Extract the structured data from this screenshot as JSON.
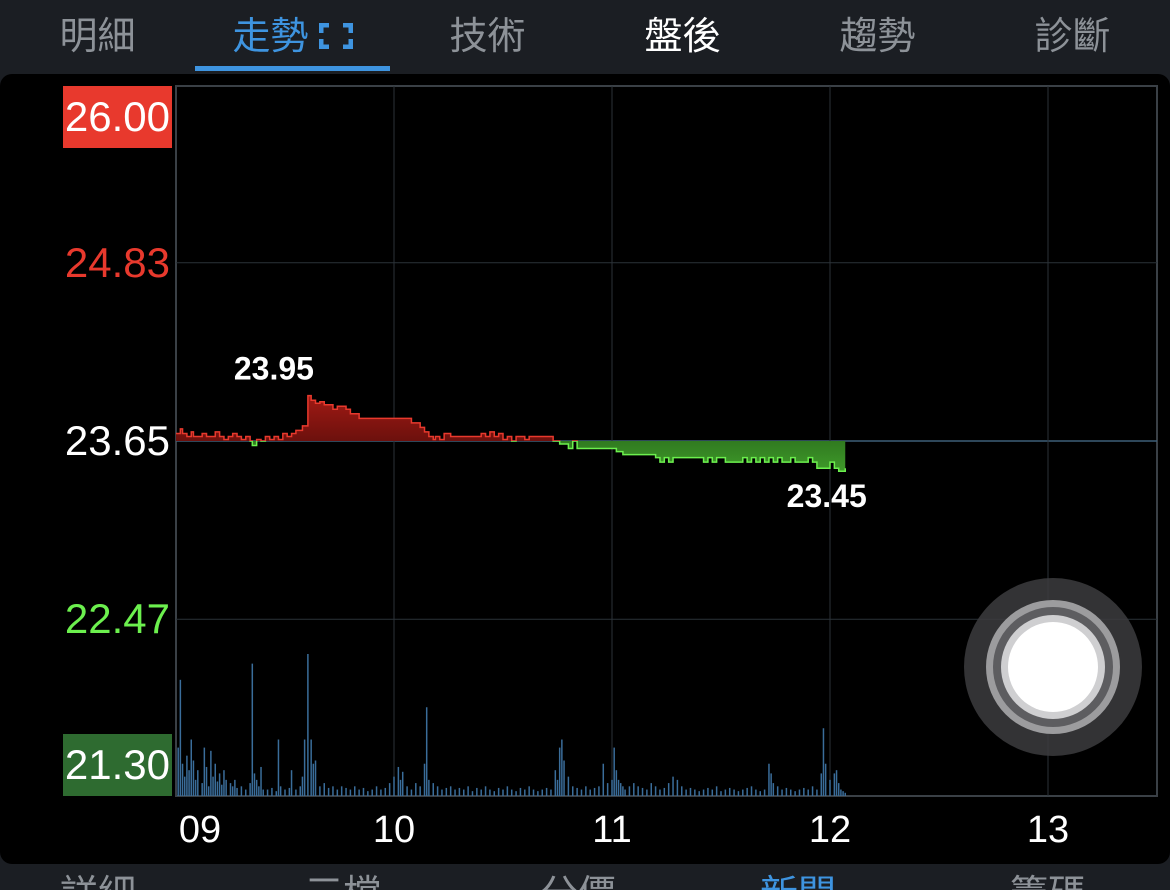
{
  "tabs": [
    {
      "label": "明細",
      "state": "normal"
    },
    {
      "label": "走勢",
      "state": "active"
    },
    {
      "label": "技術",
      "state": "normal"
    },
    {
      "label": "盤後",
      "state": "bright"
    },
    {
      "label": "趨勢",
      "state": "normal"
    },
    {
      "label": "診斷",
      "state": "normal"
    }
  ],
  "bottom_tabs": [
    {
      "label": "詳細",
      "state": "normal"
    },
    {
      "label": "三檔",
      "state": "normal"
    },
    {
      "label": "分價",
      "state": "normal"
    },
    {
      "label": "新聞",
      "state": "active"
    },
    {
      "label": "籌碼",
      "state": "normal"
    }
  ],
  "colors": {
    "up": "#e8392d",
    "down": "#6cf04e",
    "neutral": "#ffffff",
    "accent": "#3e94e0",
    "grid": "#2b3238",
    "volume": "#3a6d9a"
  },
  "chart_data": {
    "type": "line",
    "y_axis_labels": [
      {
        "text": "26.00",
        "value": 26.0,
        "color": "#ffffff",
        "bg": "#e8392d"
      },
      {
        "text": "24.83",
        "value": 24.83,
        "color": "#e8392d",
        "bg": ""
      },
      {
        "text": "23.65",
        "value": 23.65,
        "color": "#ffffff",
        "bg": ""
      },
      {
        "text": "22.47",
        "value": 22.47,
        "color": "#6cf04e",
        "bg": ""
      },
      {
        "text": "21.30",
        "value": 21.3,
        "color": "#ffffff",
        "bg": "#2e6b30"
      }
    ],
    "ylim": [
      21.3,
      26.0
    ],
    "reference_price": 23.65,
    "x_ticks": [
      "09",
      "10",
      "11",
      "12",
      "13"
    ],
    "xlim_hours": [
      9,
      13.5
    ],
    "high": {
      "label": "23.95",
      "value": 23.95,
      "time": 9.605
    },
    "low": {
      "label": "23.45",
      "value": 23.45,
      "time": 12.04
    },
    "price_series": [
      [
        9.0,
        23.7
      ],
      [
        9.02,
        23.73
      ],
      [
        9.03,
        23.7
      ],
      [
        9.05,
        23.68
      ],
      [
        9.07,
        23.71
      ],
      [
        9.08,
        23.68
      ],
      [
        9.1,
        23.68
      ],
      [
        9.12,
        23.7
      ],
      [
        9.14,
        23.68
      ],
      [
        9.16,
        23.68
      ],
      [
        9.18,
        23.71
      ],
      [
        9.2,
        23.68
      ],
      [
        9.22,
        23.66
      ],
      [
        9.24,
        23.68
      ],
      [
        9.26,
        23.7
      ],
      [
        9.28,
        23.68
      ],
      [
        9.3,
        23.66
      ],
      [
        9.32,
        23.68
      ],
      [
        9.34,
        23.65
      ],
      [
        9.35,
        23.62
      ],
      [
        9.37,
        23.66
      ],
      [
        9.39,
        23.65
      ],
      [
        9.41,
        23.68
      ],
      [
        9.43,
        23.66
      ],
      [
        9.45,
        23.68
      ],
      [
        9.47,
        23.66
      ],
      [
        9.49,
        23.7
      ],
      [
        9.51,
        23.68
      ],
      [
        9.53,
        23.7
      ],
      [
        9.55,
        23.72
      ],
      [
        9.58,
        23.75
      ],
      [
        9.605,
        23.95
      ],
      [
        9.62,
        23.92
      ],
      [
        9.64,
        23.9
      ],
      [
        9.66,
        23.91
      ],
      [
        9.68,
        23.89
      ],
      [
        9.7,
        23.89
      ],
      [
        9.72,
        23.86
      ],
      [
        9.74,
        23.88
      ],
      [
        9.76,
        23.88
      ],
      [
        9.78,
        23.86
      ],
      [
        9.8,
        23.83
      ],
      [
        9.82,
        23.83
      ],
      [
        9.84,
        23.8
      ],
      [
        9.86,
        23.8
      ],
      [
        9.88,
        23.8
      ],
      [
        9.9,
        23.8
      ],
      [
        9.92,
        23.8
      ],
      [
        9.94,
        23.8
      ],
      [
        9.96,
        23.8
      ],
      [
        9.98,
        23.8
      ],
      [
        10.02,
        23.8
      ],
      [
        10.06,
        23.8
      ],
      [
        10.08,
        23.77
      ],
      [
        10.1,
        23.77
      ],
      [
        10.12,
        23.74
      ],
      [
        10.14,
        23.71
      ],
      [
        10.16,
        23.68
      ],
      [
        10.18,
        23.66
      ],
      [
        10.19,
        23.68
      ],
      [
        10.21,
        23.66
      ],
      [
        10.23,
        23.7
      ],
      [
        10.26,
        23.68
      ],
      [
        10.3,
        23.68
      ],
      [
        10.34,
        23.68
      ],
      [
        10.38,
        23.68
      ],
      [
        10.4,
        23.7
      ],
      [
        10.42,
        23.68
      ],
      [
        10.44,
        23.71
      ],
      [
        10.46,
        23.68
      ],
      [
        10.48,
        23.7
      ],
      [
        10.5,
        23.66
      ],
      [
        10.52,
        23.68
      ],
      [
        10.54,
        23.65
      ],
      [
        10.56,
        23.68
      ],
      [
        10.6,
        23.66
      ],
      [
        10.62,
        23.68
      ],
      [
        10.64,
        23.68
      ],
      [
        10.66,
        23.68
      ],
      [
        10.68,
        23.68
      ],
      [
        10.7,
        23.68
      ],
      [
        10.73,
        23.65
      ],
      [
        10.76,
        23.63
      ],
      [
        10.78,
        23.63
      ],
      [
        10.8,
        23.6
      ],
      [
        10.82,
        23.65
      ],
      [
        10.84,
        23.6
      ],
      [
        10.9,
        23.6
      ],
      [
        10.96,
        23.6
      ],
      [
        11.0,
        23.6
      ],
      [
        11.02,
        23.58
      ],
      [
        11.05,
        23.56
      ],
      [
        11.1,
        23.56
      ],
      [
        11.15,
        23.56
      ],
      [
        11.18,
        23.56
      ],
      [
        11.2,
        23.54
      ],
      [
        11.22,
        23.51
      ],
      [
        11.24,
        23.54
      ],
      [
        11.26,
        23.51
      ],
      [
        11.28,
        23.54
      ],
      [
        11.3,
        23.54
      ],
      [
        11.35,
        23.54
      ],
      [
        11.4,
        23.54
      ],
      [
        11.42,
        23.51
      ],
      [
        11.44,
        23.54
      ],
      [
        11.46,
        23.51
      ],
      [
        11.48,
        23.54
      ],
      [
        11.52,
        23.51
      ],
      [
        11.55,
        23.51
      ],
      [
        11.58,
        23.51
      ],
      [
        11.6,
        23.54
      ],
      [
        11.62,
        23.51
      ],
      [
        11.64,
        23.54
      ],
      [
        11.66,
        23.51
      ],
      [
        11.68,
        23.54
      ],
      [
        11.7,
        23.51
      ],
      [
        11.72,
        23.54
      ],
      [
        11.74,
        23.51
      ],
      [
        11.76,
        23.54
      ],
      [
        11.78,
        23.51
      ],
      [
        11.8,
        23.51
      ],
      [
        11.82,
        23.54
      ],
      [
        11.84,
        23.51
      ],
      [
        11.86,
        23.51
      ],
      [
        11.88,
        23.51
      ],
      [
        11.9,
        23.54
      ],
      [
        11.92,
        23.51
      ],
      [
        11.94,
        23.47
      ],
      [
        11.96,
        23.47
      ],
      [
        11.98,
        23.47
      ],
      [
        12.0,
        23.51
      ],
      [
        12.02,
        23.47
      ],
      [
        12.04,
        23.45
      ],
      [
        12.07,
        23.47
      ]
    ],
    "volume_series": [
      [
        9.01,
        30
      ],
      [
        9.02,
        72
      ],
      [
        9.03,
        20
      ],
      [
        9.04,
        12
      ],
      [
        9.05,
        25
      ],
      [
        9.06,
        16
      ],
      [
        9.07,
        35
      ],
      [
        9.08,
        22
      ],
      [
        9.09,
        10
      ],
      [
        9.1,
        16
      ],
      [
        9.12,
        8
      ],
      [
        9.13,
        30
      ],
      [
        9.14,
        18
      ],
      [
        9.15,
        6
      ],
      [
        9.16,
        28
      ],
      [
        9.17,
        12
      ],
      [
        9.18,
        20
      ],
      [
        9.19,
        9
      ],
      [
        9.2,
        14
      ],
      [
        9.21,
        7
      ],
      [
        9.22,
        16
      ],
      [
        9.23,
        10
      ],
      [
        9.25,
        8
      ],
      [
        9.26,
        6
      ],
      [
        9.27,
        10
      ],
      [
        9.28,
        5
      ],
      [
        9.3,
        6
      ],
      [
        9.32,
        4
      ],
      [
        9.34,
        8
      ],
      [
        9.35,
        82
      ],
      [
        9.36,
        14
      ],
      [
        9.37,
        10
      ],
      [
        9.38,
        6
      ],
      [
        9.39,
        18
      ],
      [
        9.4,
        4
      ],
      [
        9.42,
        4
      ],
      [
        9.44,
        5
      ],
      [
        9.46,
        3
      ],
      [
        9.47,
        35
      ],
      [
        9.48,
        6
      ],
      [
        9.5,
        4
      ],
      [
        9.52,
        5
      ],
      [
        9.53,
        16
      ],
      [
        9.55,
        4
      ],
      [
        9.57,
        6
      ],
      [
        9.58,
        12
      ],
      [
        9.59,
        35
      ],
      [
        9.605,
        88
      ],
      [
        9.62,
        35
      ],
      [
        9.63,
        20
      ],
      [
        9.64,
        22
      ],
      [
        9.66,
        6
      ],
      [
        9.68,
        8
      ],
      [
        9.7,
        5
      ],
      [
        9.72,
        6
      ],
      [
        9.74,
        4
      ],
      [
        9.76,
        6
      ],
      [
        9.78,
        5
      ],
      [
        9.8,
        4
      ],
      [
        9.82,
        6
      ],
      [
        9.84,
        4
      ],
      [
        9.86,
        5
      ],
      [
        9.88,
        3
      ],
      [
        9.9,
        4
      ],
      [
        9.92,
        6
      ],
      [
        9.94,
        4
      ],
      [
        9.96,
        5
      ],
      [
        9.98,
        8
      ],
      [
        10.0,
        12
      ],
      [
        10.02,
        18
      ],
      [
        10.03,
        10
      ],
      [
        10.04,
        15
      ],
      [
        10.06,
        6
      ],
      [
        10.08,
        4
      ],
      [
        10.1,
        8
      ],
      [
        10.12,
        6
      ],
      [
        10.14,
        20
      ],
      [
        10.15,
        55
      ],
      [
        10.16,
        10
      ],
      [
        10.18,
        8
      ],
      [
        10.2,
        6
      ],
      [
        10.22,
        4
      ],
      [
        10.24,
        5
      ],
      [
        10.26,
        6
      ],
      [
        10.28,
        4
      ],
      [
        10.3,
        5
      ],
      [
        10.32,
        4
      ],
      [
        10.34,
        6
      ],
      [
        10.36,
        3
      ],
      [
        10.38,
        5
      ],
      [
        10.4,
        4
      ],
      [
        10.42,
        6
      ],
      [
        10.44,
        4
      ],
      [
        10.46,
        3
      ],
      [
        10.48,
        5
      ],
      [
        10.5,
        4
      ],
      [
        10.52,
        6
      ],
      [
        10.54,
        4
      ],
      [
        10.56,
        3
      ],
      [
        10.58,
        5
      ],
      [
        10.6,
        4
      ],
      [
        10.62,
        6
      ],
      [
        10.64,
        4
      ],
      [
        10.66,
        3
      ],
      [
        10.68,
        4
      ],
      [
        10.7,
        5
      ],
      [
        10.72,
        4
      ],
      [
        10.74,
        16
      ],
      [
        10.75,
        10
      ],
      [
        10.76,
        30
      ],
      [
        10.77,
        35
      ],
      [
        10.78,
        22
      ],
      [
        10.8,
        12
      ],
      [
        10.82,
        6
      ],
      [
        10.84,
        5
      ],
      [
        10.86,
        4
      ],
      [
        10.88,
        6
      ],
      [
        10.9,
        4
      ],
      [
        10.92,
        5
      ],
      [
        10.94,
        6
      ],
      [
        10.96,
        20
      ],
      [
        10.98,
        8
      ],
      [
        11.0,
        10
      ],
      [
        11.01,
        30
      ],
      [
        11.02,
        16
      ],
      [
        11.03,
        10
      ],
      [
        11.04,
        8
      ],
      [
        11.05,
        6
      ],
      [
        11.06,
        4
      ],
      [
        11.08,
        6
      ],
      [
        11.1,
        8
      ],
      [
        11.12,
        6
      ],
      [
        11.14,
        5
      ],
      [
        11.16,
        4
      ],
      [
        11.18,
        8
      ],
      [
        11.2,
        6
      ],
      [
        11.22,
        4
      ],
      [
        11.24,
        5
      ],
      [
        11.26,
        8
      ],
      [
        11.28,
        12
      ],
      [
        11.3,
        10
      ],
      [
        11.32,
        6
      ],
      [
        11.34,
        4
      ],
      [
        11.36,
        5
      ],
      [
        11.38,
        4
      ],
      [
        11.4,
        3
      ],
      [
        11.42,
        4
      ],
      [
        11.44,
        5
      ],
      [
        11.46,
        4
      ],
      [
        11.48,
        6
      ],
      [
        11.5,
        3
      ],
      [
        11.52,
        4
      ],
      [
        11.54,
        5
      ],
      [
        11.56,
        4
      ],
      [
        11.58,
        3
      ],
      [
        11.6,
        4
      ],
      [
        11.62,
        5
      ],
      [
        11.64,
        6
      ],
      [
        11.66,
        4
      ],
      [
        11.68,
        3
      ],
      [
        11.7,
        4
      ],
      [
        11.72,
        20
      ],
      [
        11.73,
        14
      ],
      [
        11.74,
        8
      ],
      [
        11.76,
        6
      ],
      [
        11.78,
        4
      ],
      [
        11.8,
        5
      ],
      [
        11.82,
        4
      ],
      [
        11.84,
        3
      ],
      [
        11.86,
        4
      ],
      [
        11.88,
        5
      ],
      [
        11.9,
        4
      ],
      [
        11.92,
        6
      ],
      [
        11.94,
        4
      ],
      [
        11.96,
        14
      ],
      [
        11.97,
        42
      ],
      [
        11.98,
        20
      ],
      [
        12.0,
        10
      ],
      [
        12.02,
        14
      ],
      [
        12.03,
        16
      ],
      [
        12.04,
        8
      ],
      [
        12.05,
        4
      ],
      [
        12.06,
        3
      ],
      [
        12.07,
        2
      ]
    ]
  }
}
